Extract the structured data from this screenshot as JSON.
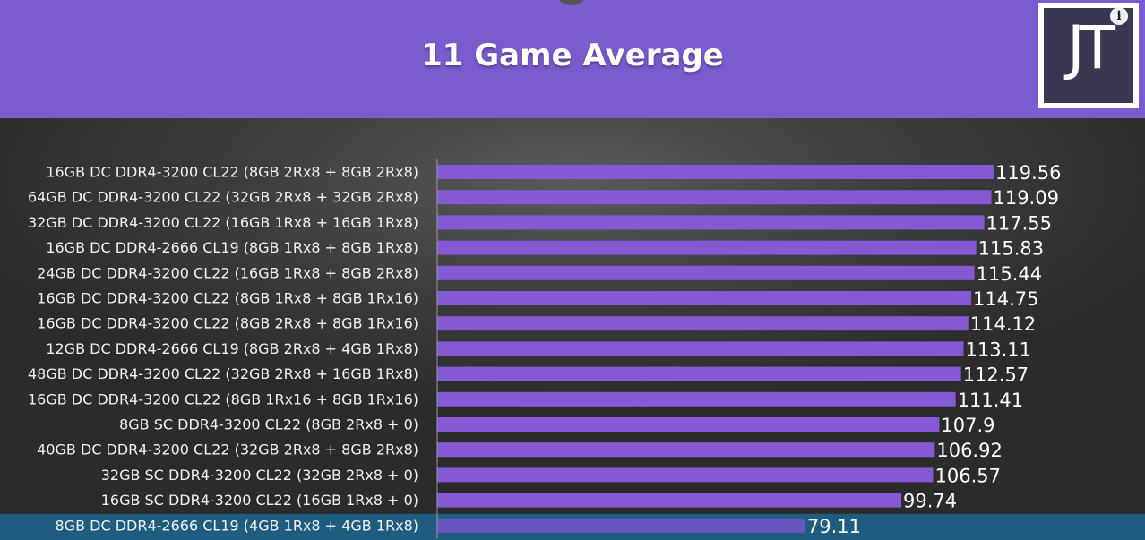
{
  "header": {
    "title": "11 Game Average",
    "logo_text": "JT",
    "info_icon_glyph": "i",
    "background_color": "#7b5ccf"
  },
  "chart_data": {
    "type": "bar",
    "orientation": "horizontal",
    "title": "11 Game Average",
    "categories": [
      "16GB DC DDR4-3200 CL22 (8GB 2Rx8 + 8GB 2Rx8)",
      "64GB DC DDR4-3200 CL22 (32GB 2Rx8 + 32GB 2Rx8)",
      "32GB DC DDR4-3200 CL22 (16GB 1Rx8 + 16GB 1Rx8)",
      "16GB DC DDR4-2666 CL19 (8GB 1Rx8 + 8GB 1Rx8)",
      "24GB DC DDR4-3200 CL22 (16GB 1Rx8 + 8GB 2Rx8)",
      "16GB DC DDR4-3200 CL22 (8GB 1Rx8 + 8GB 1Rx16)",
      "16GB DC DDR4-3200 CL22 (8GB 2Rx8 + 8GB 1Rx16)",
      "12GB DC DDR4-2666 CL19 (8GB 2Rx8 + 4GB 1Rx8)",
      "48GB DC DDR4-3200 CL22 (32GB 2Rx8 + 16GB 1Rx8)",
      "16GB DC DDR4-3200 CL22 (8GB 1Rx16 + 8GB 1Rx16)",
      "8GB SC DDR4-3200 CL22 (8GB 2Rx8 + 0)",
      "40GB DC DDR4-3200 CL22 (32GB 2Rx8 + 8GB 2Rx8)",
      "32GB SC DDR4-3200 CL22 (32GB 2Rx8 + 0)",
      "16GB SC DDR4-3200 CL22 (16GB 1Rx8 + 0)",
      "8GB DC DDR4-2666 CL19 (4GB 1Rx8 + 4GB 1Rx8)"
    ],
    "values": [
      119.56,
      119.09,
      117.55,
      115.83,
      115.44,
      114.75,
      114.12,
      113.11,
      112.57,
      111.41,
      107.9,
      106.92,
      106.57,
      99.74,
      79.11
    ],
    "value_labels": [
      "119.56",
      "119.09",
      "117.55",
      "115.83",
      "115.44",
      "114.75",
      "114.12",
      "113.11",
      "112.57",
      "111.41",
      "107.9",
      "106.92",
      "106.57",
      "99.74",
      "79.11"
    ],
    "xlim": [
      0,
      134
    ],
    "highlighted_index": 14,
    "grid": false,
    "legend": "none",
    "colors": {
      "bar": "#8659d4",
      "bar_highlight": "#6a55c0",
      "highlight_row": "#1f5d80",
      "axis": "#9a9a9a",
      "label_text": "#f2f2f2",
      "value_text": "#ffffff"
    }
  }
}
